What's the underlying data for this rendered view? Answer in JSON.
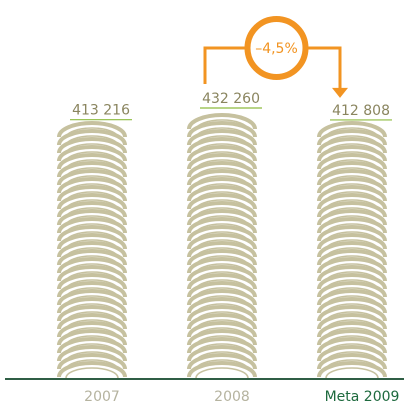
{
  "chart_data": {
    "type": "pictorial-bar",
    "categories": [
      "2007",
      "2008",
      "Meta 2009"
    ],
    "values": [
      413216,
      432260,
      412808
    ],
    "value_labels": [
      "413 216",
      "432 260",
      "412 808"
    ],
    "color": "#c6c19f",
    "label_color": "#8a855f",
    "underline_color": "#8dbb3f",
    "category_colors": [
      "#b5b39f",
      "#b5b39f",
      "#1e6a3e"
    ],
    "axis_color": "#2f5e45",
    "annotation": {
      "text": "–4,5%",
      "from": 1,
      "to": 2,
      "color": "#f29422"
    }
  }
}
